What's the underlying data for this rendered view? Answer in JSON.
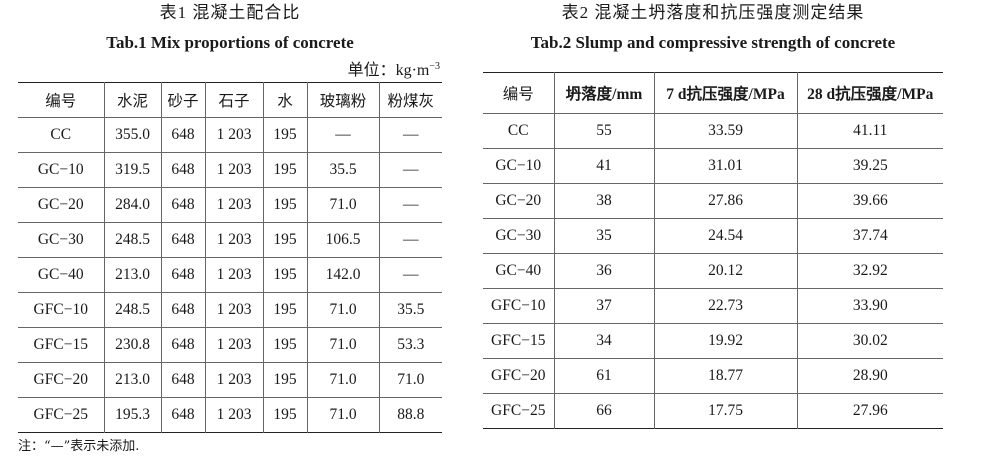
{
  "table1": {
    "caption_cn": "表1  混凝土配合比",
    "caption_en": "Tab.1 Mix proportions of concrete",
    "unit_label": "单位：kg·m",
    "unit_exp": "−3",
    "headers": [
      "编号",
      "水泥",
      "砂子",
      "石子",
      "水",
      "玻璃粉",
      "粉煤灰"
    ],
    "rows": [
      [
        "CC",
        "355.0",
        "648",
        "1 203",
        "195",
        "—",
        "—"
      ],
      [
        "GC−10",
        "319.5",
        "648",
        "1 203",
        "195",
        "35.5",
        "—"
      ],
      [
        "GC−20",
        "284.0",
        "648",
        "1 203",
        "195",
        "71.0",
        "—"
      ],
      [
        "GC−30",
        "248.5",
        "648",
        "1 203",
        "195",
        "106.5",
        "—"
      ],
      [
        "GC−40",
        "213.0",
        "648",
        "1 203",
        "195",
        "142.0",
        "—"
      ],
      [
        "GFC−10",
        "248.5",
        "648",
        "1 203",
        "195",
        "71.0",
        "35.5"
      ],
      [
        "GFC−15",
        "230.8",
        "648",
        "1 203",
        "195",
        "71.0",
        "53.3"
      ],
      [
        "GFC−20",
        "213.0",
        "648",
        "1 203",
        "195",
        "71.0",
        "71.0"
      ],
      [
        "GFC−25",
        "195.3",
        "648",
        "1 203",
        "195",
        "71.0",
        "88.8"
      ]
    ],
    "note": "注：“—”表示未添加."
  },
  "table2": {
    "caption_cn": "表2  混凝土坍落度和抗压强度测定结果",
    "caption_en": "Tab.2 Slump and compressive strength of concrete",
    "headers": [
      "编号",
      "坍落度/mm",
      "7 d抗压强度/MPa",
      "28 d抗压强度/MPa"
    ],
    "rows": [
      [
        "CC",
        "55",
        "33.59",
        "41.11"
      ],
      [
        "GC−10",
        "41",
        "31.01",
        "39.25"
      ],
      [
        "GC−20",
        "38",
        "27.86",
        "39.66"
      ],
      [
        "GC−30",
        "35",
        "24.54",
        "37.74"
      ],
      [
        "GC−40",
        "36",
        "20.12",
        "32.92"
      ],
      [
        "GFC−10",
        "37",
        "22.73",
        "33.90"
      ],
      [
        "GFC−15",
        "34",
        "19.92",
        "30.02"
      ],
      [
        "GFC−20",
        "61",
        "18.77",
        "28.90"
      ],
      [
        "GFC−25",
        "66",
        "17.75",
        "27.96"
      ]
    ]
  }
}
